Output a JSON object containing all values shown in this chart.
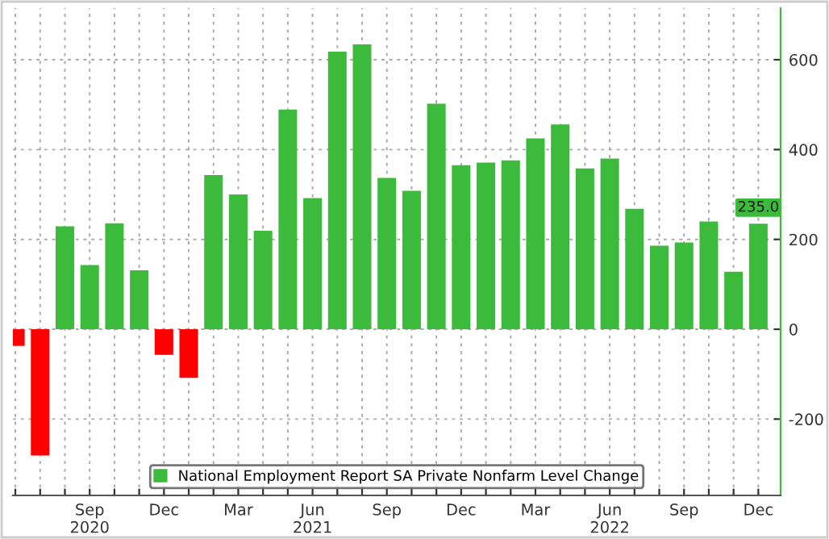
{
  "chart_data": {
    "type": "bar",
    "categories": [
      null,
      null,
      null,
      "Sep\n2020",
      null,
      null,
      "Dec",
      null,
      null,
      "Mar",
      null,
      null,
      "Jun\n2021",
      null,
      null,
      "Sep",
      null,
      null,
      "Dec",
      null,
      null,
      "Mar",
      null,
      null,
      "Jun\n2022",
      null,
      null,
      "Sep",
      null,
      null,
      "Dec"
    ],
    "series": [
      {
        "name": "National Employment Report SA Private Nonfarm Level Change",
        "values": [
          -37,
          -281,
          229,
          143,
          236,
          131,
          -57,
          -108,
          343,
          300,
          219,
          489,
          292,
          618,
          634,
          337,
          308,
          502,
          365,
          371,
          376,
          425,
          456,
          358,
          380,
          268,
          186,
          193,
          240,
          128,
          235
        ],
        "colors": [
          "#ff0000",
          "#ff0000",
          "#3cba3c",
          "#3cba3c",
          "#3cba3c",
          "#3cba3c",
          "#ff0000",
          "#ff0000",
          "#3cba3c",
          "#3cba3c",
          "#3cba3c",
          "#3cba3c",
          "#3cba3c",
          "#3cba3c",
          "#3cba3c",
          "#3cba3c",
          "#3cba3c",
          "#3cba3c",
          "#3cba3c",
          "#3cba3c",
          "#3cba3c",
          "#3cba3c",
          "#3cba3c",
          "#3cba3c",
          "#3cba3c",
          "#3cba3c",
          "#3cba3c",
          "#3cba3c",
          "#3cba3c",
          "#3cba3c",
          "#3cba3c"
        ],
        "color": "#3cba3c",
        "value_labels": [
          null,
          null,
          null,
          null,
          null,
          null,
          null,
          null,
          null,
          null,
          null,
          null,
          null,
          null,
          null,
          null,
          null,
          null,
          null,
          null,
          null,
          null,
          null,
          null,
          null,
          null,
          null,
          null,
          null,
          null,
          "235.0"
        ]
      }
    ],
    "ylim": [
      -370,
      715
    ],
    "yticks": [
      -200,
      0,
      200,
      400,
      600
    ],
    "grid": true,
    "legend": "bottom"
  }
}
